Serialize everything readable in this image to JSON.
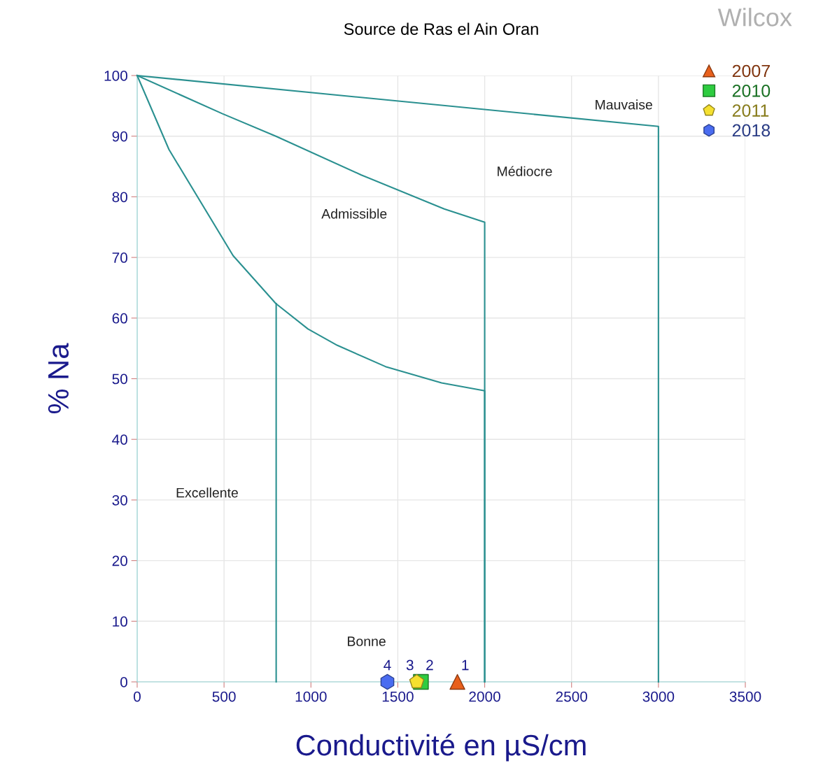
{
  "chart_data": {
    "type": "scatter",
    "title": "Source de Ras el Ain Oran",
    "xlabel": "Conductivité en µS/cm",
    "ylabel": "% Na",
    "xlim": [
      0,
      3500
    ],
    "ylim": [
      0,
      100
    ],
    "xticks": [
      0,
      500,
      1000,
      1500,
      2000,
      2500,
      3000,
      3500
    ],
    "yticks": [
      0,
      10,
      20,
      30,
      40,
      50,
      60,
      70,
      80,
      90,
      100
    ],
    "grid": true,
    "legend": "top right",
    "series": [
      {
        "type": "line",
        "color": "#2a9090",
        "x": [
          0,
          3000,
          3000
        ],
        "values": [
          100,
          91.6,
          0
        ]
      },
      {
        "type": "line",
        "color": "#2a9090",
        "x": [
          0,
          491,
          798,
          1290,
          1767,
          2000,
          2000
        ],
        "values": [
          100,
          93.7,
          90,
          83.6,
          78,
          75.8,
          0
        ]
      },
      {
        "type": "line",
        "color": "#2a9090",
        "x": [
          0,
          183,
          552,
          798,
          983,
          1152,
          1429,
          1752,
          2000,
          2000
        ],
        "values": [
          100,
          87.8,
          70.3,
          62.4,
          58.2,
          55.5,
          52,
          49.3,
          48,
          0
        ]
      },
      {
        "type": "line",
        "color": "#2a9090",
        "x": [
          800,
          800
        ],
        "values": [
          62.4,
          0
        ]
      },
      {
        "name": "2007",
        "color": "#e8601c",
        "marker": "triangle",
        "x": [
          1843
        ],
        "values": [
          0
        ]
      },
      {
        "name": "2010",
        "color": "#2ecc40",
        "marker": "square",
        "x": [
          1633
        ],
        "values": [
          0
        ]
      },
      {
        "name": "2011",
        "color": "#f5e030",
        "x": [
          1609
        ],
        "values": [
          0
        ]
      },
      {
        "name": "2018",
        "color": "#4a6cf0",
        "x": [
          1440
        ],
        "values": [
          0
        ]
      }
    ],
    "annotations": [
      {
        "text": "1",
        "x": 1843,
        "y": 0
      },
      {
        "text": "2",
        "x": 1633,
        "y": 0
      },
      {
        "text": "3",
        "x": 1609,
        "y": 0
      },
      {
        "text": "4",
        "x": 1440,
        "y": 0
      },
      "Excellente",
      "Bonne",
      "Admissible",
      "Médiocre",
      "Mauvaise",
      "Wilcox"
    ]
  }
}
